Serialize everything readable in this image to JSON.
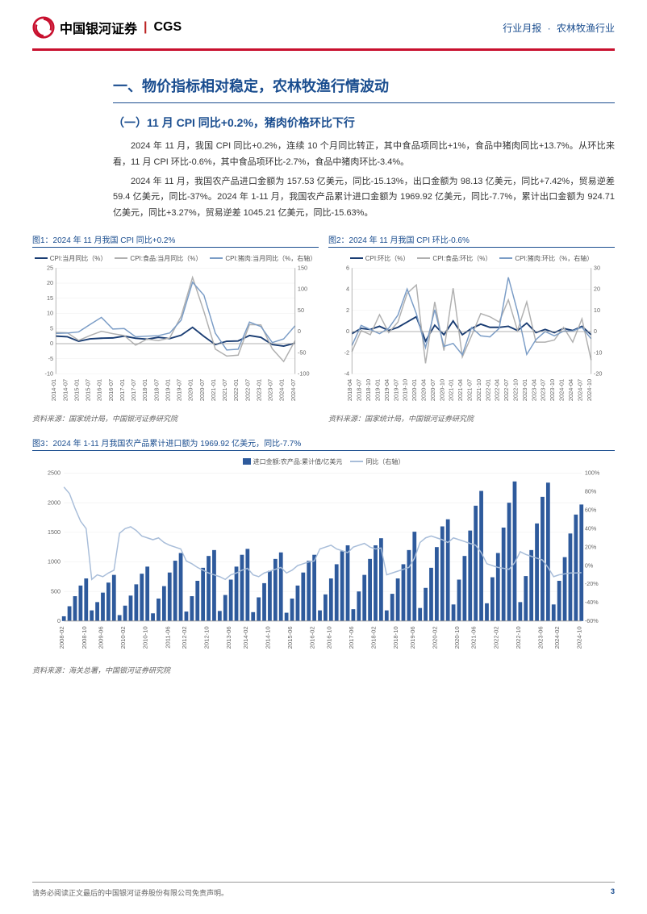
{
  "header": {
    "company_cn": "中国银河证券",
    "company_en": "CGS",
    "report_type": "行业月报",
    "industry": "农林牧渔行业"
  },
  "section": {
    "title": "一、物价指标相对稳定，农林牧渔行情波动",
    "subtitle": "（一）11 月 CPI 同比+0.2%，猪肉价格环比下行",
    "p1": "2024 年 11 月，我国 CPI 同比+0.2%，连续 10 个月同比转正，其中食品项同比+1%，食品中猪肉同比+13.7%。从环比来看，11 月 CPI 环比-0.6%，其中食品项环比-2.7%，食品中猪肉环比-3.4%。",
    "p2": "2024 年 11 月，我国农产品进口金额为 157.53 亿美元，同比-15.13%，出口金额为 98.13 亿美元，同比+7.42%，贸易逆差 59.4 亿美元，同比-37%。2024 年 1-11 月，我国农产品累计进口金额为 1969.92 亿美元，同比-7.7%，累计出口金额为 924.71 亿美元，同比+3.27%，贸易逆差 1045.21 亿美元，同比-15.63%。"
  },
  "chart1": {
    "title": "图1：2024 年 11 月我国 CPI 同比+0.2%",
    "source": "资料来源：国家统计局，中国银河证券研究院",
    "legend": [
      "CPI:当月同比（%）",
      "CPI:食品:当月同比（%）",
      "CPI:猪肉:当月同比（%，右轴）"
    ],
    "colors": [
      "#1a3d73",
      "#b0b0b0",
      "#7a9cc6"
    ],
    "x_labels": [
      "2014-01",
      "2014-07",
      "2015-01",
      "2015-07",
      "2016-01",
      "2016-07",
      "2017-01",
      "2017-07",
      "2018-01",
      "2018-07",
      "2019-01",
      "2019-07",
      "2020-01",
      "2020-07",
      "2021-01",
      "2021-07",
      "2022-01",
      "2022-07",
      "2023-01",
      "2023-07",
      "2024-01",
      "2024-07"
    ],
    "y_left": {
      "min": -10,
      "max": 25,
      "step": 5
    },
    "y_right": {
      "min": -100,
      "max": 150,
      "step": 50
    },
    "series": {
      "cpi": [
        2.5,
        2.3,
        0.8,
        1.6,
        1.8,
        1.9,
        2.5,
        1.8,
        1.5,
        2.1,
        1.7,
        2.8,
        5.4,
        2.4,
        -0.3,
        0.8,
        0.9,
        2.7,
        2.1,
        -0.3,
        -0.8,
        0.2
      ],
      "food": [
        3.7,
        3.6,
        1.1,
        2.7,
        4.1,
        3.3,
        2.7,
        -0.5,
        1.5,
        1.0,
        1.9,
        9.1,
        21.9,
        10.6,
        -1.8,
        -4.1,
        -3.8,
        6.3,
        6.2,
        -1.7,
        -5.9,
        1.0
      ],
      "pork": [
        -4.3,
        -3.6,
        -0.8,
        16.7,
        33.5,
        5.9,
        7.1,
        -12.4,
        -10.8,
        -9.6,
        -3.2,
        27.0,
        116.4,
        85.7,
        -3.9,
        -43.5,
        -41.6,
        22.4,
        11.8,
        -26.0,
        -17.3,
        13.7
      ]
    }
  },
  "chart2": {
    "title": "图2：2024 年 11 月我国 CPI 环比-0.6%",
    "source": "资料来源：国家统计局，中国银河证券研究院",
    "legend": [
      "CPI:环比（%）",
      "CPI:食品:环比（%）",
      "CPI:猪肉:环比（%，右轴）"
    ],
    "colors": [
      "#1a3d73",
      "#b0b0b0",
      "#7a9cc6"
    ],
    "x_labels": [
      "2018-04",
      "2018-07",
      "2018-10",
      "2019-01",
      "2019-04",
      "2019-07",
      "2019-10",
      "2020-01",
      "2020-04",
      "2020-07",
      "2020-10",
      "2021-01",
      "2021-04",
      "2021-07",
      "2021-10",
      "2022-01",
      "2022-04",
      "2022-07",
      "2022-10",
      "2023-01",
      "2023-04",
      "2023-07",
      "2023-10",
      "2024-01",
      "2024-04",
      "2024-07",
      "2024-10"
    ],
    "y_left": {
      "min": -4,
      "max": 6,
      "step": 2
    },
    "y_right": {
      "min": -20,
      "max": 30,
      "step": 10
    },
    "series": {
      "cpi": [
        -0.2,
        0.3,
        0.2,
        0.5,
        0.1,
        0.4,
        0.9,
        1.4,
        -0.9,
        0.6,
        -0.3,
        1.0,
        -0.3,
        0.3,
        0.7,
        0.4,
        0.4,
        0.5,
        0.1,
        0.8,
        -0.1,
        0.2,
        -0.1,
        0.3,
        0.1,
        0.5,
        -0.3
      ],
      "food": [
        -1.9,
        0.1,
        -0.3,
        1.6,
        -0.1,
        0.9,
        3.6,
        4.4,
        -3.0,
        2.8,
        -1.8,
        4.1,
        -2.4,
        -0.4,
        1.7,
        1.4,
        0.9,
        3.0,
        0.1,
        2.8,
        -1.0,
        -1.0,
        -0.8,
        0.4,
        -1.0,
        1.2,
        -2.7
      ],
      "pork": [
        -6.6,
        2.9,
        1.0,
        -1.0,
        1.6,
        7.8,
        20.1,
        8.5,
        -7.6,
        10.3,
        -7.0,
        -5.6,
        -11.0,
        1.9,
        -2.0,
        -2.5,
        1.5,
        25.6,
        9.4,
        -10.8,
        -3.8,
        0.0,
        -2.0,
        0.2,
        0.3,
        2.0,
        -3.4
      ]
    }
  },
  "chart3": {
    "title": "图3：2024 年 1-11 月我国农产品累计进口额为 1969.92 亿美元，同比-7.7%",
    "source": "资料来源：海关总署，中国银河证券研究院",
    "legend": [
      "进口金额:农产品:累计值/亿美元",
      "同比（右轴）"
    ],
    "colors": [
      "#2e5a9c",
      "#a8bdd9"
    ],
    "x_labels": [
      "2008-02",
      "2008-10",
      "2009-06",
      "2010-02",
      "2010-10",
      "2011-06",
      "2012-02",
      "2012-10",
      "2013-06",
      "2014-02",
      "2014-10",
      "2015-06",
      "2016-02",
      "2016-10",
      "2017-06",
      "2018-02",
      "2018-10",
      "2019-06",
      "2020-02",
      "2020-10",
      "2021-06",
      "2022-02",
      "2022-10",
      "2023-06",
      "2024-02",
      "2024-10"
    ],
    "y_left": {
      "min": 0,
      "max": 2500,
      "step": 500
    },
    "y_right": {
      "min": -60,
      "max": 100,
      "step": 20
    },
    "bars_full": [
      80,
      250,
      420,
      600,
      720,
      180,
      320,
      480,
      650,
      780,
      100,
      260,
      430,
      620,
      800,
      920,
      130,
      380,
      590,
      820,
      1020,
      1150,
      160,
      420,
      680,
      900,
      1100,
      1200,
      170,
      440,
      700,
      920,
      1120,
      1220,
      150,
      400,
      640,
      850,
      1050,
      1160,
      140,
      380,
      600,
      820,
      1020,
      1120,
      180,
      450,
      720,
      960,
      1180,
      1280,
      200,
      500,
      780,
      1050,
      1280,
      1400,
      180,
      460,
      720,
      960,
      1200,
      1510,
      220,
      560,
      900,
      1250,
      1600,
      1720,
      280,
      700,
      1100,
      1530,
      1950,
      2200,
      300,
      740,
      1150,
      1580,
      2000,
      2360,
      320,
      760,
      1200,
      1650,
      2100,
      2340,
      280,
      680,
      1080,
      1480,
      1800,
      1970
    ],
    "line_full": [
      85,
      78,
      62,
      48,
      40,
      -15,
      -10,
      -12,
      -8,
      -5,
      35,
      40,
      42,
      38,
      32,
      30,
      28,
      30,
      25,
      22,
      20,
      18,
      5,
      2,
      -2,
      -5,
      -8,
      -10,
      -12,
      -15,
      -10,
      -8,
      -5,
      -3,
      -10,
      -12,
      -8,
      -6,
      -4,
      -2,
      -8,
      -5,
      0,
      2,
      4,
      5,
      18,
      20,
      22,
      18,
      16,
      14,
      20,
      22,
      24,
      20,
      18,
      19,
      -10,
      -8,
      -6,
      -4,
      -2,
      8,
      25,
      30,
      32,
      30,
      28,
      25,
      30,
      28,
      26,
      24,
      22,
      14,
      2,
      0,
      -2,
      -3,
      -4,
      3,
      15,
      12,
      10,
      8,
      6,
      -2,
      -12,
      -10,
      -9,
      -8,
      -8,
      -7.7
    ]
  },
  "footer": {
    "disclaimer": "请务必阅读正文最后的中国银河证券股份有限公司免责声明。",
    "page": "3"
  }
}
